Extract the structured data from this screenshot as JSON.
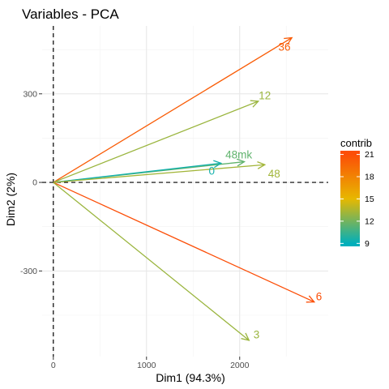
{
  "chart_data": {
    "type": "biplot-arrows",
    "title": "Variables - PCA",
    "xlabel": "Dim1 (94.3%)",
    "ylabel": "Dim2 (2%)",
    "xlim": [
      -120,
      2950
    ],
    "ylim": [
      -590,
      530
    ],
    "x_ticks": [
      0,
      1000,
      2000
    ],
    "y_ticks": [
      -300,
      0,
      300
    ],
    "grid": true,
    "reference_lines": {
      "x": 0,
      "y": 0,
      "style": "dashed"
    },
    "variables": [
      {
        "name": "36",
        "x": 2560,
        "y": 490,
        "contrib": 20.2,
        "label_x": 2480,
        "label_y": 460
      },
      {
        "name": "12",
        "x": 2200,
        "y": 275,
        "contrib": 13.0,
        "label_x": 2270,
        "label_y": 295
      },
      {
        "name": "48mk",
        "x": 2050,
        "y": 70,
        "contrib": 11.5,
        "label_x": 1990,
        "label_y": 95
      },
      {
        "name": "0",
        "x": 1800,
        "y": 65,
        "contrib": 9.5,
        "label_x": 1700,
        "label_y": 40
      },
      {
        "name": "48",
        "x": 2270,
        "y": 60,
        "contrib": 13.2,
        "label_x": 2370,
        "label_y": 30
      },
      {
        "name": "6",
        "x": 2800,
        "y": -405,
        "contrib": 21.0,
        "label_x": 2850,
        "label_y": -385
      },
      {
        "name": "3",
        "x": 2100,
        "y": -535,
        "contrib": 13.0,
        "label_x": 2180,
        "label_y": -515
      }
    ],
    "legend": {
      "title": "contrib",
      "placement": "right",
      "min": 8.6,
      "max": 21.5,
      "ticks": [
        21,
        18,
        15,
        12,
        9
      ],
      "gradient_stops": [
        {
          "value": 9,
          "color": "#00AFBB"
        },
        {
          "value": 15,
          "color": "#E7B800"
        },
        {
          "value": 21,
          "color": "#FC4E07"
        }
      ]
    }
  }
}
